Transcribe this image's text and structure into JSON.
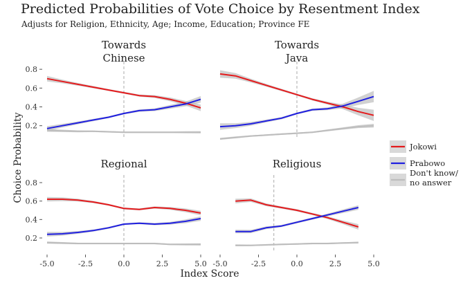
{
  "chart_data": {
    "type": "line",
    "title": "Predicted Probabilities of Vote Choice by Resentment Index",
    "subtitle": "Adjusts for Religion, Ethnicity, Age; Income, Education; Province FE",
    "xlabel": "Index Score",
    "ylabel": "Choice Probability",
    "xlim": [
      -5.0,
      5.0
    ],
    "ylim": [
      0.08,
      0.86
    ],
    "x_ticks": [
      "-5.0",
      "-2.5",
      "0.0",
      "2.5",
      "5.0"
    ],
    "y_ticks": [
      "0.2",
      "0.4",
      "0.6",
      "0.8"
    ],
    "grid": false,
    "legend_position": "right",
    "legend": [
      {
        "label": "Jokowi",
        "color": "#e41a1c"
      },
      {
        "label": "Prabowo",
        "color": "#1f1fe0"
      },
      {
        "label": "Don't know/\nno answer",
        "color": "#bdbdbd"
      }
    ],
    "panels": [
      {
        "title": "Towards\nChinese",
        "mean_marker_x": 0.0,
        "series": [
          {
            "name": "Jokowi",
            "x": [
              -5,
              -4,
              -3,
              -2,
              -1,
              0,
              1,
              2,
              3,
              4,
              5
            ],
            "y": [
              0.7,
              0.67,
              0.64,
              0.61,
              0.58,
              0.55,
              0.52,
              0.51,
              0.48,
              0.44,
              0.39
            ],
            "band": [
              0.03,
              0.02,
              0.015,
              0.012,
              0.01,
              0.01,
              0.012,
              0.015,
              0.02,
              0.025,
              0.035
            ]
          },
          {
            "name": "Prabowo",
            "x": [
              -5,
              -4,
              -3,
              -2,
              -1,
              0,
              1,
              2,
              3,
              4,
              5
            ],
            "y": [
              0.17,
              0.2,
              0.23,
              0.26,
              0.29,
              0.33,
              0.36,
              0.37,
              0.4,
              0.43,
              0.48
            ],
            "band": [
              0.025,
              0.02,
              0.015,
              0.012,
              0.01,
              0.01,
              0.012,
              0.015,
              0.02,
              0.025,
              0.035
            ]
          },
          {
            "name": "Don't know/\nno answer",
            "x": [
              -5,
              -4,
              -3,
              -2,
              -1,
              0,
              1,
              2,
              3,
              4,
              5
            ],
            "y": [
              0.15,
              0.145,
              0.14,
              0.14,
              0.135,
              0.13,
              0.13,
              0.13,
              0.13,
              0.13,
              0.13
            ],
            "band": [
              0.015,
              0.012,
              0.01,
              0.008,
              0.008,
              0.008,
              0.008,
              0.008,
              0.008,
              0.01,
              0.012
            ]
          }
        ]
      },
      {
        "title": "Towards\nJava",
        "mean_marker_x": 0.0,
        "series": [
          {
            "name": "Jokowi",
            "x": [
              -5,
              -4,
              -3,
              -2,
              -1,
              0,
              1,
              2,
              3,
              4,
              5
            ],
            "y": [
              0.75,
              0.73,
              0.68,
              0.63,
              0.58,
              0.53,
              0.48,
              0.44,
              0.4,
              0.35,
              0.31
            ],
            "band": [
              0.04,
              0.03,
              0.02,
              0.015,
              0.012,
              0.01,
              0.012,
              0.015,
              0.025,
              0.04,
              0.06
            ]
          },
          {
            "name": "Prabowo",
            "x": [
              -5,
              -4,
              -3,
              -2,
              -1,
              0,
              1,
              2,
              3,
              4,
              5
            ],
            "y": [
              0.19,
              0.2,
              0.22,
              0.25,
              0.28,
              0.33,
              0.37,
              0.38,
              0.41,
              0.46,
              0.51
            ],
            "band": [
              0.035,
              0.025,
              0.02,
              0.015,
              0.012,
              0.01,
              0.012,
              0.015,
              0.025,
              0.04,
              0.06
            ]
          },
          {
            "name": "Don't know/\nno answer",
            "x": [
              -5,
              -4,
              -3,
              -2,
              -1,
              0,
              1,
              2,
              3,
              4,
              5
            ],
            "y": [
              0.06,
              0.075,
              0.09,
              0.1,
              0.11,
              0.12,
              0.13,
              0.15,
              0.17,
              0.19,
              0.2
            ],
            "band": [
              0.01,
              0.01,
              0.008,
              0.008,
              0.008,
              0.008,
              0.008,
              0.01,
              0.012,
              0.015,
              0.02
            ]
          }
        ]
      },
      {
        "title": "Regional",
        "mean_marker_x": 0.0,
        "series": [
          {
            "name": "Jokowi",
            "x": [
              -5,
              -4,
              -3,
              -2,
              -1,
              0,
              1,
              2,
              3,
              4,
              5
            ],
            "y": [
              0.62,
              0.62,
              0.61,
              0.59,
              0.56,
              0.52,
              0.51,
              0.53,
              0.52,
              0.5,
              0.47
            ],
            "band": [
              0.025,
              0.02,
              0.015,
              0.012,
              0.01,
              0.01,
              0.01,
              0.012,
              0.015,
              0.02,
              0.025
            ]
          },
          {
            "name": "Prabowo",
            "x": [
              -5,
              -4,
              -3,
              -2,
              -1,
              0,
              1,
              2,
              3,
              4,
              5
            ],
            "y": [
              0.24,
              0.245,
              0.26,
              0.28,
              0.31,
              0.35,
              0.36,
              0.35,
              0.36,
              0.38,
              0.41
            ],
            "band": [
              0.025,
              0.02,
              0.015,
              0.012,
              0.01,
              0.01,
              0.01,
              0.012,
              0.015,
              0.02,
              0.025
            ]
          },
          {
            "name": "Don't know/\nno answer",
            "x": [
              -5,
              -4,
              -3,
              -2,
              -1,
              0,
              1,
              2,
              3,
              4,
              5
            ],
            "y": [
              0.15,
              0.145,
              0.14,
              0.14,
              0.14,
              0.14,
              0.14,
              0.14,
              0.13,
              0.13,
              0.13
            ],
            "band": [
              0.012,
              0.01,
              0.008,
              0.008,
              0.008,
              0.008,
              0.008,
              0.008,
              0.008,
              0.01,
              0.012
            ]
          }
        ]
      },
      {
        "title": "Religious",
        "mean_marker_x": -1.5,
        "series": [
          {
            "name": "Jokowi",
            "x": [
              -4,
              -3,
              -2,
              -1,
              0,
              1,
              2,
              3,
              4
            ],
            "y": [
              0.6,
              0.61,
              0.56,
              0.53,
              0.5,
              0.46,
              0.42,
              0.37,
              0.32
            ],
            "band": [
              0.025,
              0.02,
              0.015,
              0.012,
              0.012,
              0.012,
              0.015,
              0.02,
              0.03
            ]
          },
          {
            "name": "Prabowo",
            "x": [
              -4,
              -3,
              -2,
              -1,
              0,
              1,
              2,
              3,
              4
            ],
            "y": [
              0.27,
              0.27,
              0.31,
              0.33,
              0.37,
              0.41,
              0.45,
              0.49,
              0.53
            ],
            "band": [
              0.02,
              0.018,
              0.015,
              0.012,
              0.012,
              0.012,
              0.015,
              0.02,
              0.025
            ]
          },
          {
            "name": "Don't know/\nno answer",
            "x": [
              -4,
              -3,
              -2,
              -1,
              0,
              1,
              2,
              3,
              4
            ],
            "y": [
              0.12,
              0.12,
              0.125,
              0.13,
              0.135,
              0.14,
              0.14,
              0.145,
              0.15
            ],
            "band": [
              0.01,
              0.008,
              0.008,
              0.008,
              0.008,
              0.008,
              0.008,
              0.008,
              0.01
            ]
          }
        ]
      }
    ]
  }
}
